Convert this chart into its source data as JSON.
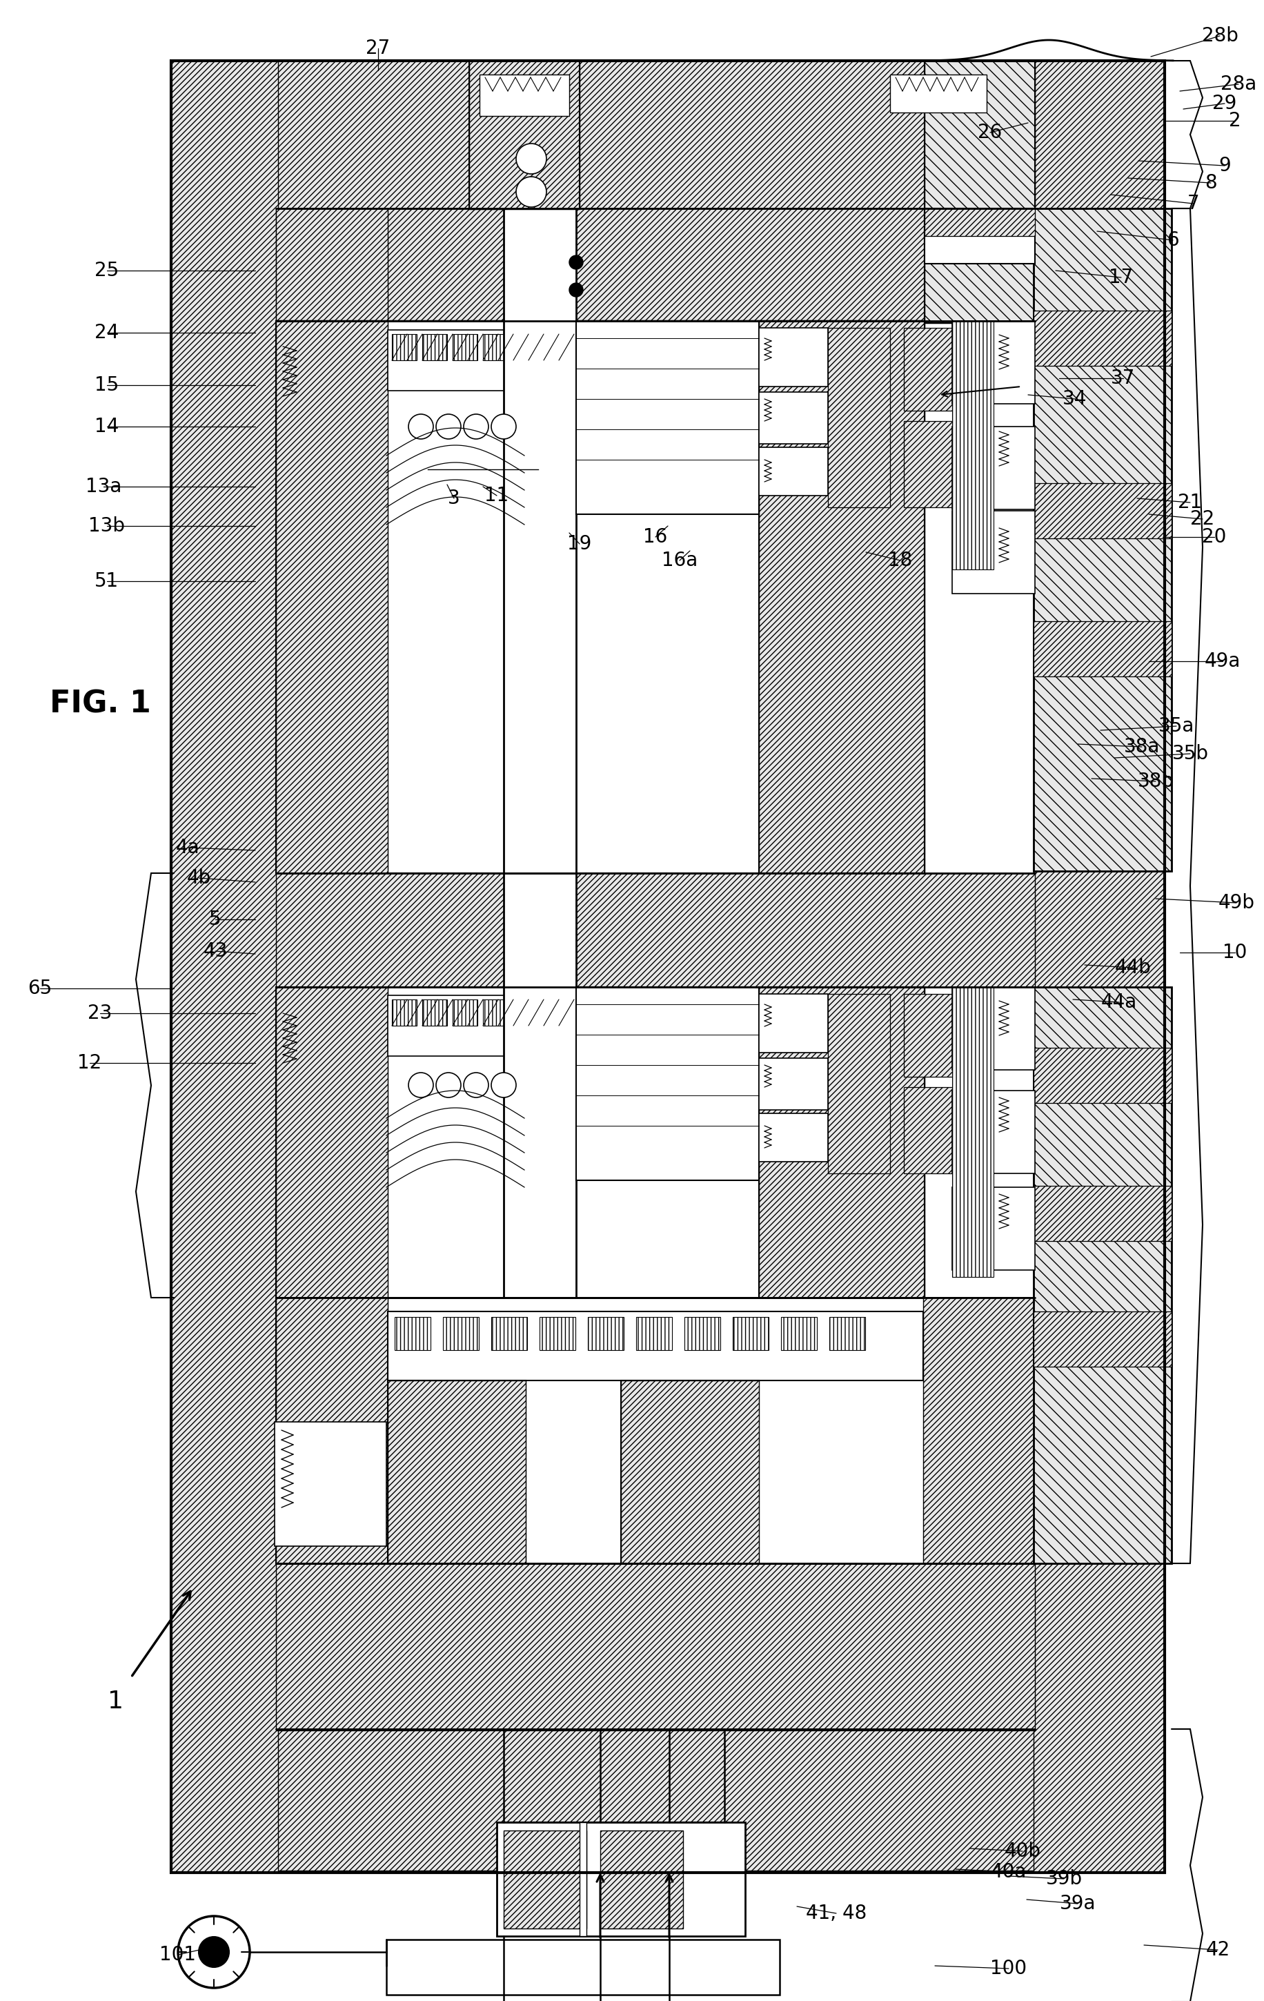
{
  "bg_color": "#ffffff",
  "line_color": "#000000",
  "fig_label": "FIG. 1",
  "labels_pos": [
    [
      "2",
      1790,
      175,
      1690,
      175
    ],
    [
      "6",
      1700,
      348,
      1590,
      335
    ],
    [
      "7",
      1730,
      295,
      1610,
      282
    ],
    [
      "8",
      1755,
      265,
      1635,
      258
    ],
    [
      "9",
      1775,
      240,
      1650,
      233
    ],
    [
      "10",
      1790,
      1380,
      1710,
      1380
    ],
    [
      "11",
      720,
      718,
      700,
      705
    ],
    [
      "12",
      130,
      1540,
      370,
      1540
    ],
    [
      "13a",
      150,
      705,
      370,
      705
    ],
    [
      "13b",
      155,
      762,
      370,
      762
    ],
    [
      "14",
      155,
      618,
      370,
      618
    ],
    [
      "15",
      155,
      558,
      370,
      558
    ],
    [
      "16",
      950,
      778,
      968,
      762
    ],
    [
      "16a",
      985,
      812,
      1000,
      798
    ],
    [
      "17",
      1625,
      402,
      1530,
      392
    ],
    [
      "18",
      1305,
      812,
      1255,
      800
    ],
    [
      "19",
      840,
      788,
      825,
      772
    ],
    [
      "20",
      1760,
      778,
      1685,
      778
    ],
    [
      "21",
      1725,
      728,
      1648,
      722
    ],
    [
      "22",
      1743,
      752,
      1665,
      745
    ],
    [
      "23",
      145,
      1468,
      370,
      1468
    ],
    [
      "24",
      155,
      482,
      370,
      482
    ],
    [
      "25",
      155,
      392,
      370,
      392
    ],
    [
      "26",
      1435,
      192,
      1490,
      178
    ],
    [
      "27",
      548,
      70,
      548,
      102
    ],
    [
      "28a",
      1795,
      122,
      1710,
      132
    ],
    [
      "28b",
      1768,
      52,
      1668,
      82
    ],
    [
      "29",
      1775,
      150,
      1715,
      158
    ],
    [
      "3",
      658,
      722,
      648,
      702
    ],
    [
      "34",
      1558,
      578,
      1490,
      572
    ],
    [
      "35a",
      1705,
      1052,
      1595,
      1058
    ],
    [
      "35b",
      1725,
      1092,
      1615,
      1098
    ],
    [
      "37",
      1628,
      548,
      1535,
      548
    ],
    [
      "38a",
      1655,
      1082,
      1562,
      1078
    ],
    [
      "38b",
      1675,
      1132,
      1582,
      1128
    ],
    [
      "39a",
      1562,
      2758,
      1488,
      2752
    ],
    [
      "39b",
      1542,
      2722,
      1462,
      2718
    ],
    [
      "40a",
      1462,
      2712,
      1385,
      2708
    ],
    [
      "40b",
      1482,
      2682,
      1405,
      2678
    ],
    [
      "41, 48",
      1212,
      2772,
      1155,
      2762
    ],
    [
      "42",
      1765,
      2825,
      1658,
      2818
    ],
    [
      "43",
      312,
      1378,
      370,
      1382
    ],
    [
      "44a",
      1622,
      1452,
      1555,
      1448
    ],
    [
      "44b",
      1642,
      1402,
      1572,
      1398
    ],
    [
      "49a",
      1772,
      958,
      1665,
      958
    ],
    [
      "49b",
      1792,
      1308,
      1675,
      1302
    ],
    [
      "4a",
      272,
      1228,
      370,
      1232
    ],
    [
      "4b",
      288,
      1272,
      370,
      1278
    ],
    [
      "5",
      312,
      1332,
      370,
      1332
    ],
    [
      "51",
      155,
      842,
      370,
      842
    ],
    [
      "65",
      58,
      1432,
      252,
      1432
    ],
    [
      "100",
      1462,
      2852,
      1355,
      2848
    ],
    [
      "101",
      258,
      2832,
      302,
      2822
    ]
  ]
}
